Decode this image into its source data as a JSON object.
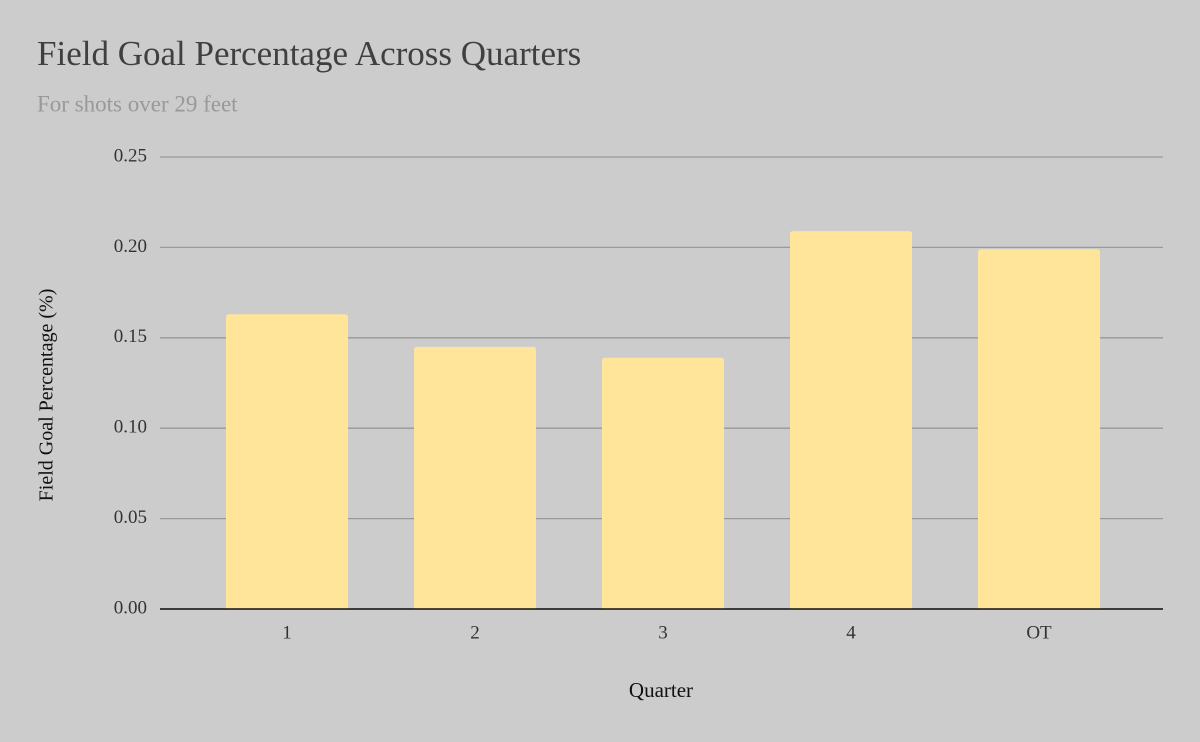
{
  "chart_data": {
    "type": "bar",
    "title": "Field Goal Percentage Across Quarters",
    "subtitle": "For shots over 29 feet",
    "x_label": "Quarter",
    "y_label": "Field Goal Percentage (%)",
    "categories": [
      "1",
      "2",
      "3",
      "4",
      "OT"
    ],
    "values": [
      0.163,
      0.145,
      0.139,
      0.209,
      0.199
    ],
    "color": "#ffe599",
    "ylim": [
      0,
      0.25
    ],
    "yticks": [
      {
        "value": 0,
        "label": "0.00"
      },
      0.05,
      {
        "value": 0.1,
        "label": "0.10"
      },
      0.15,
      {
        "value": 0.2,
        "label": "0.20"
      },
      0.25
    ],
    "grid": true
  }
}
